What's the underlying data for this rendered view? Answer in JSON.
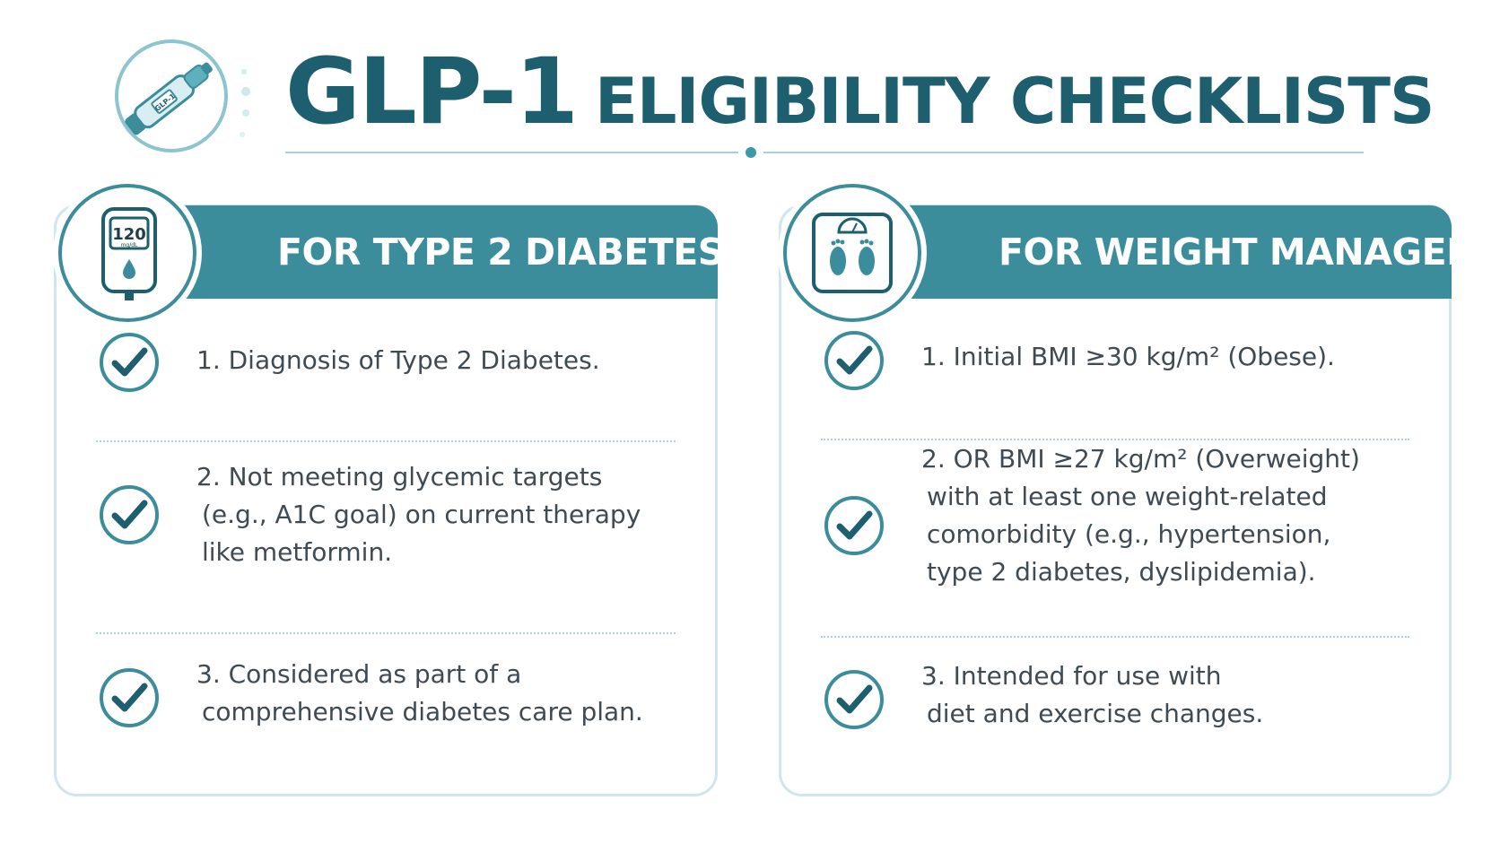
{
  "header": {
    "title_main": "GLP-1",
    "title_rest": "ELIGIBILITY CHECKLISTS",
    "logo_pen_label": "GLP-1"
  },
  "colors": {
    "primary_teal": "#3b8d9c",
    "title_teal": "#1d5f6f",
    "border_light": "#cfe6ea",
    "text": "#3f4a52"
  },
  "cards": [
    {
      "id": "type2-diabetes",
      "title": "FOR TYPE 2 DIABETES",
      "icon": "glucose-meter-icon",
      "meter_reading": "120",
      "meter_unit": "mg/dL",
      "items": [
        {
          "lines": [
            "1. Diagnosis of Type 2 Diabetes."
          ]
        },
        {
          "lines": [
            "2. Not meeting glycemic targets",
            "(e.g., A1C goal) on current therapy",
            "like metformin."
          ]
        },
        {
          "lines": [
            "3. Considered as part of a",
            "comprehensive diabetes care plan."
          ]
        }
      ]
    },
    {
      "id": "weight-management",
      "title": "FOR WEIGHT MANAGEMENT",
      "icon": "bathroom-scale-icon",
      "items": [
        {
          "lines": [
            "1. Initial BMI ≥30 kg/m² (Obese)."
          ]
        },
        {
          "lines": [
            "2. OR BMI ≥27 kg/m² (Overweight)",
            "with at least one weight-related",
            "comorbidity (e.g., hypertension,",
            "type 2 diabetes, dyslipidemia)."
          ]
        },
        {
          "lines": [
            "3. Intended for use with",
            "diet and exercise changes."
          ]
        }
      ]
    }
  ]
}
